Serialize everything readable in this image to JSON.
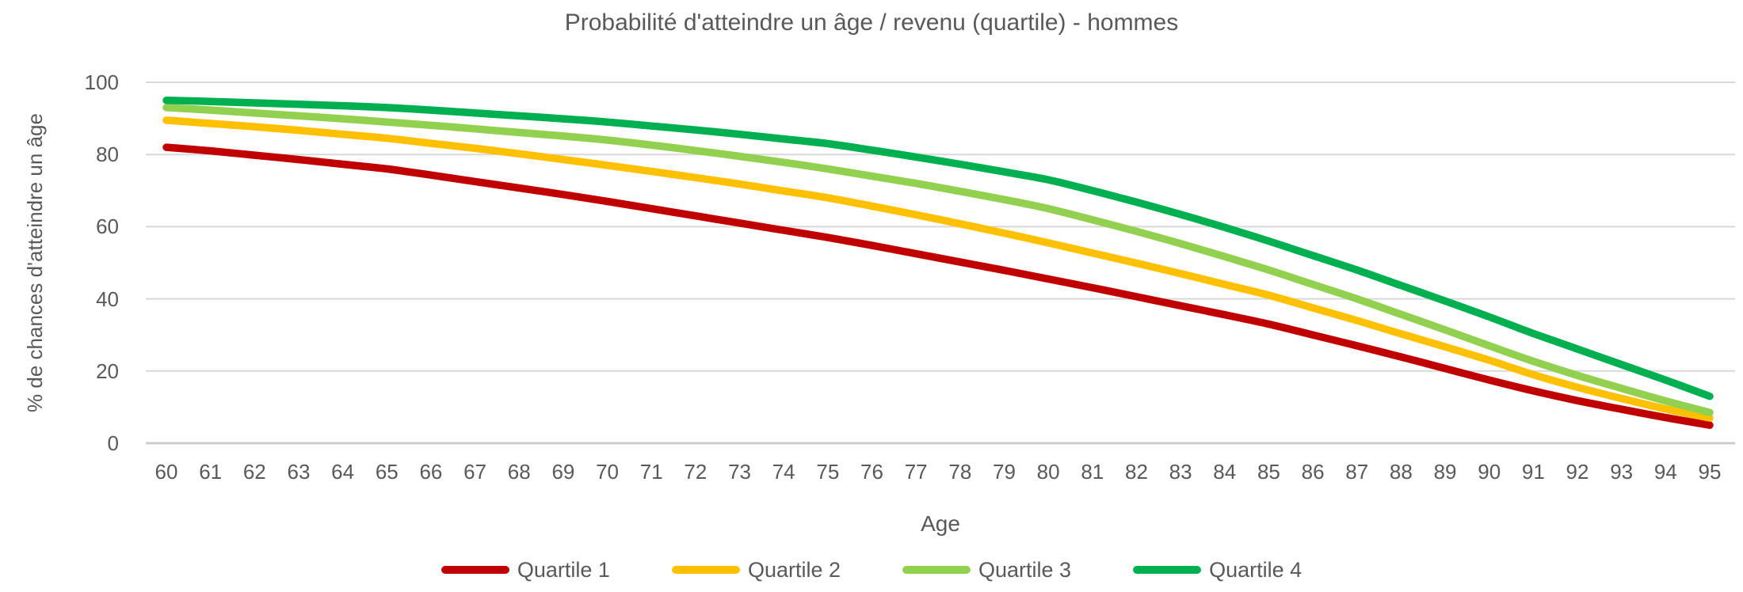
{
  "chart_data": {
    "type": "line",
    "title": "Probabilité d'atteindre un âge / revenu (quartile) - hommes",
    "xlabel": "Age",
    "ylabel": "% de chances d'atteindre un âge",
    "x": [
      60,
      61,
      62,
      63,
      64,
      65,
      66,
      67,
      68,
      69,
      70,
      71,
      72,
      73,
      74,
      75,
      76,
      77,
      78,
      79,
      80,
      81,
      82,
      83,
      84,
      85,
      86,
      87,
      88,
      89,
      90,
      91,
      92,
      93,
      94,
      95
    ],
    "ylim": [
      0,
      100
    ],
    "yticks": [
      0,
      20,
      40,
      60,
      80,
      100
    ],
    "grid": "horizontal",
    "legend_position": "bottom",
    "smooth": true,
    "series": [
      {
        "name": "Quartile 1",
        "color": "#C00000",
        "values": [
          82,
          81,
          79.8,
          78.6,
          77.3,
          76,
          74.3,
          72.5,
          70.7,
          68.9,
          67,
          65,
          63,
          61,
          59,
          57,
          54.8,
          52.5,
          50.2,
          47.9,
          45.5,
          43.1,
          40.6,
          38.1,
          35.6,
          33,
          30,
          27,
          23.9,
          20.7,
          17.5,
          14.5,
          11.8,
          9.4,
          7.1,
          5
        ]
      },
      {
        "name": "Quartile 2",
        "color": "#FFC000",
        "values": [
          89.5,
          88.6,
          87.7,
          86.7,
          85.6,
          84.5,
          83.1,
          81.7,
          80.2,
          78.6,
          77,
          75.3,
          73.6,
          71.8,
          69.9,
          68,
          65.7,
          63.3,
          60.8,
          58.2,
          55.5,
          52.7,
          49.9,
          47,
          44,
          41,
          37.5,
          34,
          30.3,
          26.7,
          23,
          19,
          15.5,
          12.4,
          9.5,
          7
        ]
      },
      {
        "name": "Quartile 3",
        "color": "#92D050",
        "values": [
          93,
          92.3,
          91.5,
          90.7,
          89.9,
          89,
          88.1,
          87.1,
          86.1,
          85.1,
          84,
          82.6,
          81.1,
          79.5,
          77.8,
          76,
          74,
          72,
          69.8,
          67.5,
          65,
          61.9,
          58.7,
          55.3,
          51.7,
          48,
          44,
          40,
          35.7,
          31.4,
          27,
          22.7,
          18.8,
          15.2,
          11.7,
          8.5
        ]
      },
      {
        "name": "Quartile 4",
        "color": "#00B050",
        "values": [
          95,
          94.7,
          94.3,
          93.9,
          93.5,
          93,
          92.3,
          91.5,
          90.7,
          89.9,
          89,
          87.9,
          86.8,
          85.6,
          84.3,
          83,
          81.2,
          79.3,
          77.3,
          75.2,
          73,
          70,
          66.8,
          63.4,
          59.8,
          56,
          52,
          48,
          43.7,
          39.4,
          35,
          30.4,
          26.1,
          21.8,
          17.5,
          13
        ]
      }
    ]
  },
  "colors": {
    "text": "#595959",
    "gridline": "#D9D9D9",
    "axis_line": "#CCCCCC",
    "background": "#FFFFFF"
  }
}
